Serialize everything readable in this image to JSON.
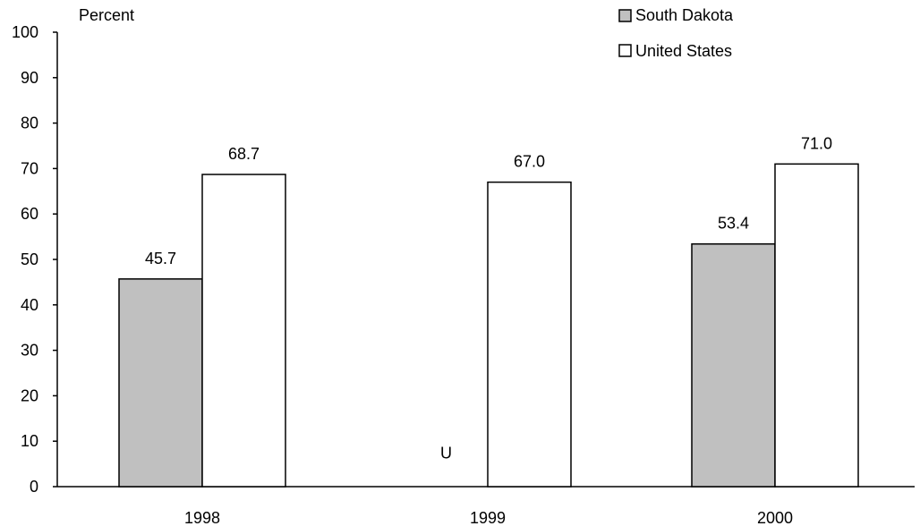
{
  "chart_data": {
    "type": "bar",
    "ylabel": "Percent",
    "categories": [
      "1998",
      "1999",
      "2000"
    ],
    "series": [
      {
        "name": "South Dakota",
        "values": [
          45.7,
          null,
          53.4
        ],
        "labels": [
          "45.7",
          "U",
          "53.4"
        ],
        "color": "#c0c0c0"
      },
      {
        "name": "United States",
        "values": [
          68.7,
          67.0,
          71.0
        ],
        "labels": [
          "68.7",
          "67.0",
          "71.0"
        ],
        "color": "#ffffff"
      }
    ],
    "ylim": [
      0,
      100
    ],
    "yticks": [
      "0",
      "10",
      "20",
      "30",
      "40",
      "50",
      "60",
      "70",
      "80",
      "90",
      "100"
    ],
    "grid": false,
    "legend_position": "top-right"
  }
}
